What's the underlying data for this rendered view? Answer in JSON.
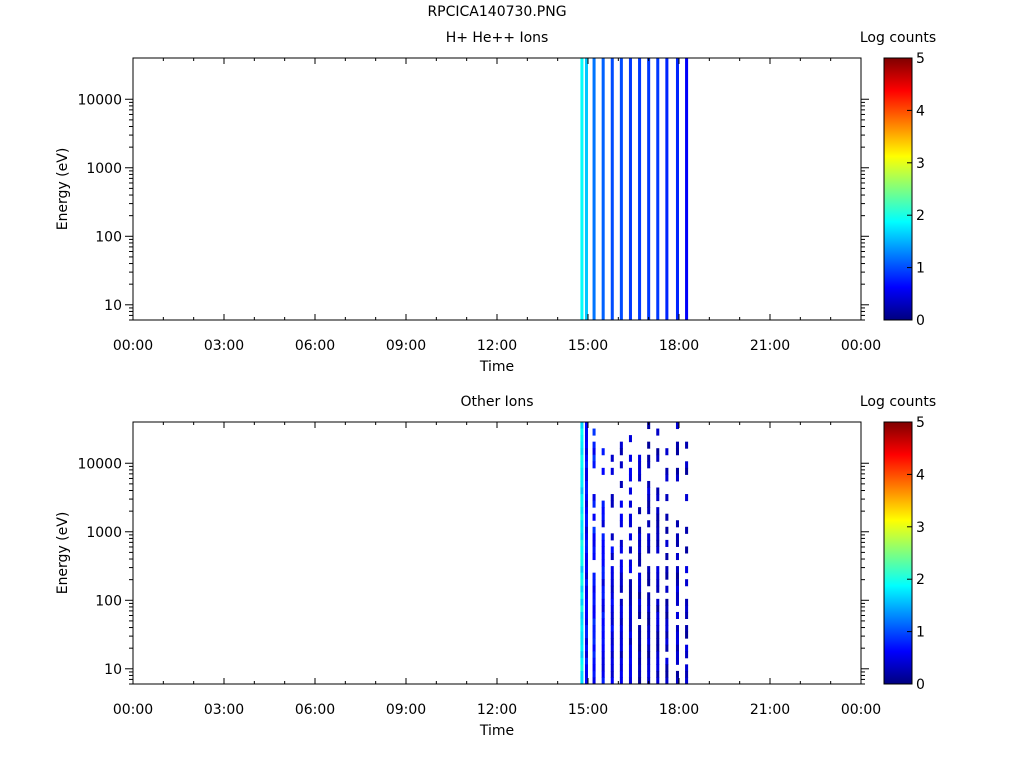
{
  "page_title": "RPCICA140730.PNG",
  "chart_data": [
    {
      "type": "heatmap",
      "title": "H+ He++ Ions",
      "xlabel": "Time",
      "ylabel": "Energy (eV)",
      "x_tick_labels": [
        "00:00",
        "03:00",
        "06:00",
        "09:00",
        "12:00",
        "15:00",
        "18:00",
        "21:00",
        "00:00"
      ],
      "x_range_hours": [
        0,
        24
      ],
      "y_scale": "log",
      "y_range": [
        6,
        40000
      ],
      "y_tick_labels": [
        "10",
        "100",
        "1000",
        "10000"
      ],
      "colorbar_label": "Log counts",
      "colorbar_range": [
        0,
        5
      ],
      "colorbar_ticks": [
        "0",
        "1",
        "2",
        "3",
        "4",
        "5"
      ],
      "colormap": [
        "#00007f",
        "#0000ff",
        "#007fff",
        "#00ffff",
        "#7fff7f",
        "#ffff00",
        "#ff7f00",
        "#ff0000",
        "#7f0000"
      ],
      "data_time_range_hours": [
        14.75,
        18.3
      ],
      "stripes": [
        {
          "start": 14.75,
          "end": 14.85,
          "log_counts": 1.9
        },
        {
          "start": 14.9,
          "end": 15.0,
          "log_counts": 1.6
        },
        {
          "start": 15.15,
          "end": 15.25,
          "log_counts": 1.2
        },
        {
          "start": 15.45,
          "end": 15.55,
          "log_counts": 1.1
        },
        {
          "start": 15.75,
          "end": 15.85,
          "log_counts": 1.0
        },
        {
          "start": 16.05,
          "end": 16.15,
          "log_counts": 1.0
        },
        {
          "start": 16.35,
          "end": 16.45,
          "log_counts": 0.9
        },
        {
          "start": 16.65,
          "end": 16.75,
          "log_counts": 0.9
        },
        {
          "start": 16.95,
          "end": 17.05,
          "log_counts": 0.9
        },
        {
          "start": 17.25,
          "end": 17.35,
          "log_counts": 0.9
        },
        {
          "start": 17.55,
          "end": 17.65,
          "log_counts": 0.8
        },
        {
          "start": 17.9,
          "end": 18.0,
          "log_counts": 0.8
        },
        {
          "start": 18.2,
          "end": 18.3,
          "log_counts": 0.6
        }
      ]
    },
    {
      "type": "heatmap",
      "title": "Other Ions",
      "xlabel": "Time",
      "ylabel": "Energy (eV)",
      "x_tick_labels": [
        "00:00",
        "03:00",
        "06:00",
        "09:00",
        "12:00",
        "15:00",
        "18:00",
        "21:00",
        "00:00"
      ],
      "x_range_hours": [
        0,
        24
      ],
      "y_scale": "log",
      "y_range": [
        6,
        40000
      ],
      "y_tick_labels": [
        "10",
        "100",
        "1000",
        "10000"
      ],
      "colorbar_label": "Log counts",
      "colorbar_range": [
        0,
        5
      ],
      "colorbar_ticks": [
        "0",
        "1",
        "2",
        "3",
        "4",
        "5"
      ],
      "colormap": [
        "#00007f",
        "#0000ff",
        "#007fff",
        "#00ffff",
        "#7fff7f",
        "#ffff00",
        "#ff7f00",
        "#ff0000",
        "#7f0000"
      ],
      "data_time_range_hours": [
        14.75,
        18.3
      ],
      "stripes": [
        {
          "start": 14.75,
          "end": 14.85,
          "log_counts": 1.8
        },
        {
          "start": 14.9,
          "end": 15.0,
          "log_counts": 0.6
        },
        {
          "start": 15.15,
          "end": 15.25,
          "log_counts": 0.7
        },
        {
          "start": 15.45,
          "end": 15.55,
          "log_counts": 0.6
        },
        {
          "start": 15.75,
          "end": 15.85,
          "log_counts": 0.5
        },
        {
          "start": 16.05,
          "end": 16.15,
          "log_counts": 0.4
        },
        {
          "start": 16.35,
          "end": 16.45,
          "log_counts": 0.4
        },
        {
          "start": 16.65,
          "end": 16.75,
          "log_counts": 0.3
        },
        {
          "start": 16.95,
          "end": 17.05,
          "log_counts": 0.3
        },
        {
          "start": 17.25,
          "end": 17.35,
          "log_counts": 0.3
        },
        {
          "start": 17.55,
          "end": 17.65,
          "log_counts": 0.3
        },
        {
          "start": 17.9,
          "end": 18.0,
          "log_counts": 0.3
        },
        {
          "start": 18.2,
          "end": 18.3,
          "log_counts": 0.3
        }
      ]
    }
  ]
}
